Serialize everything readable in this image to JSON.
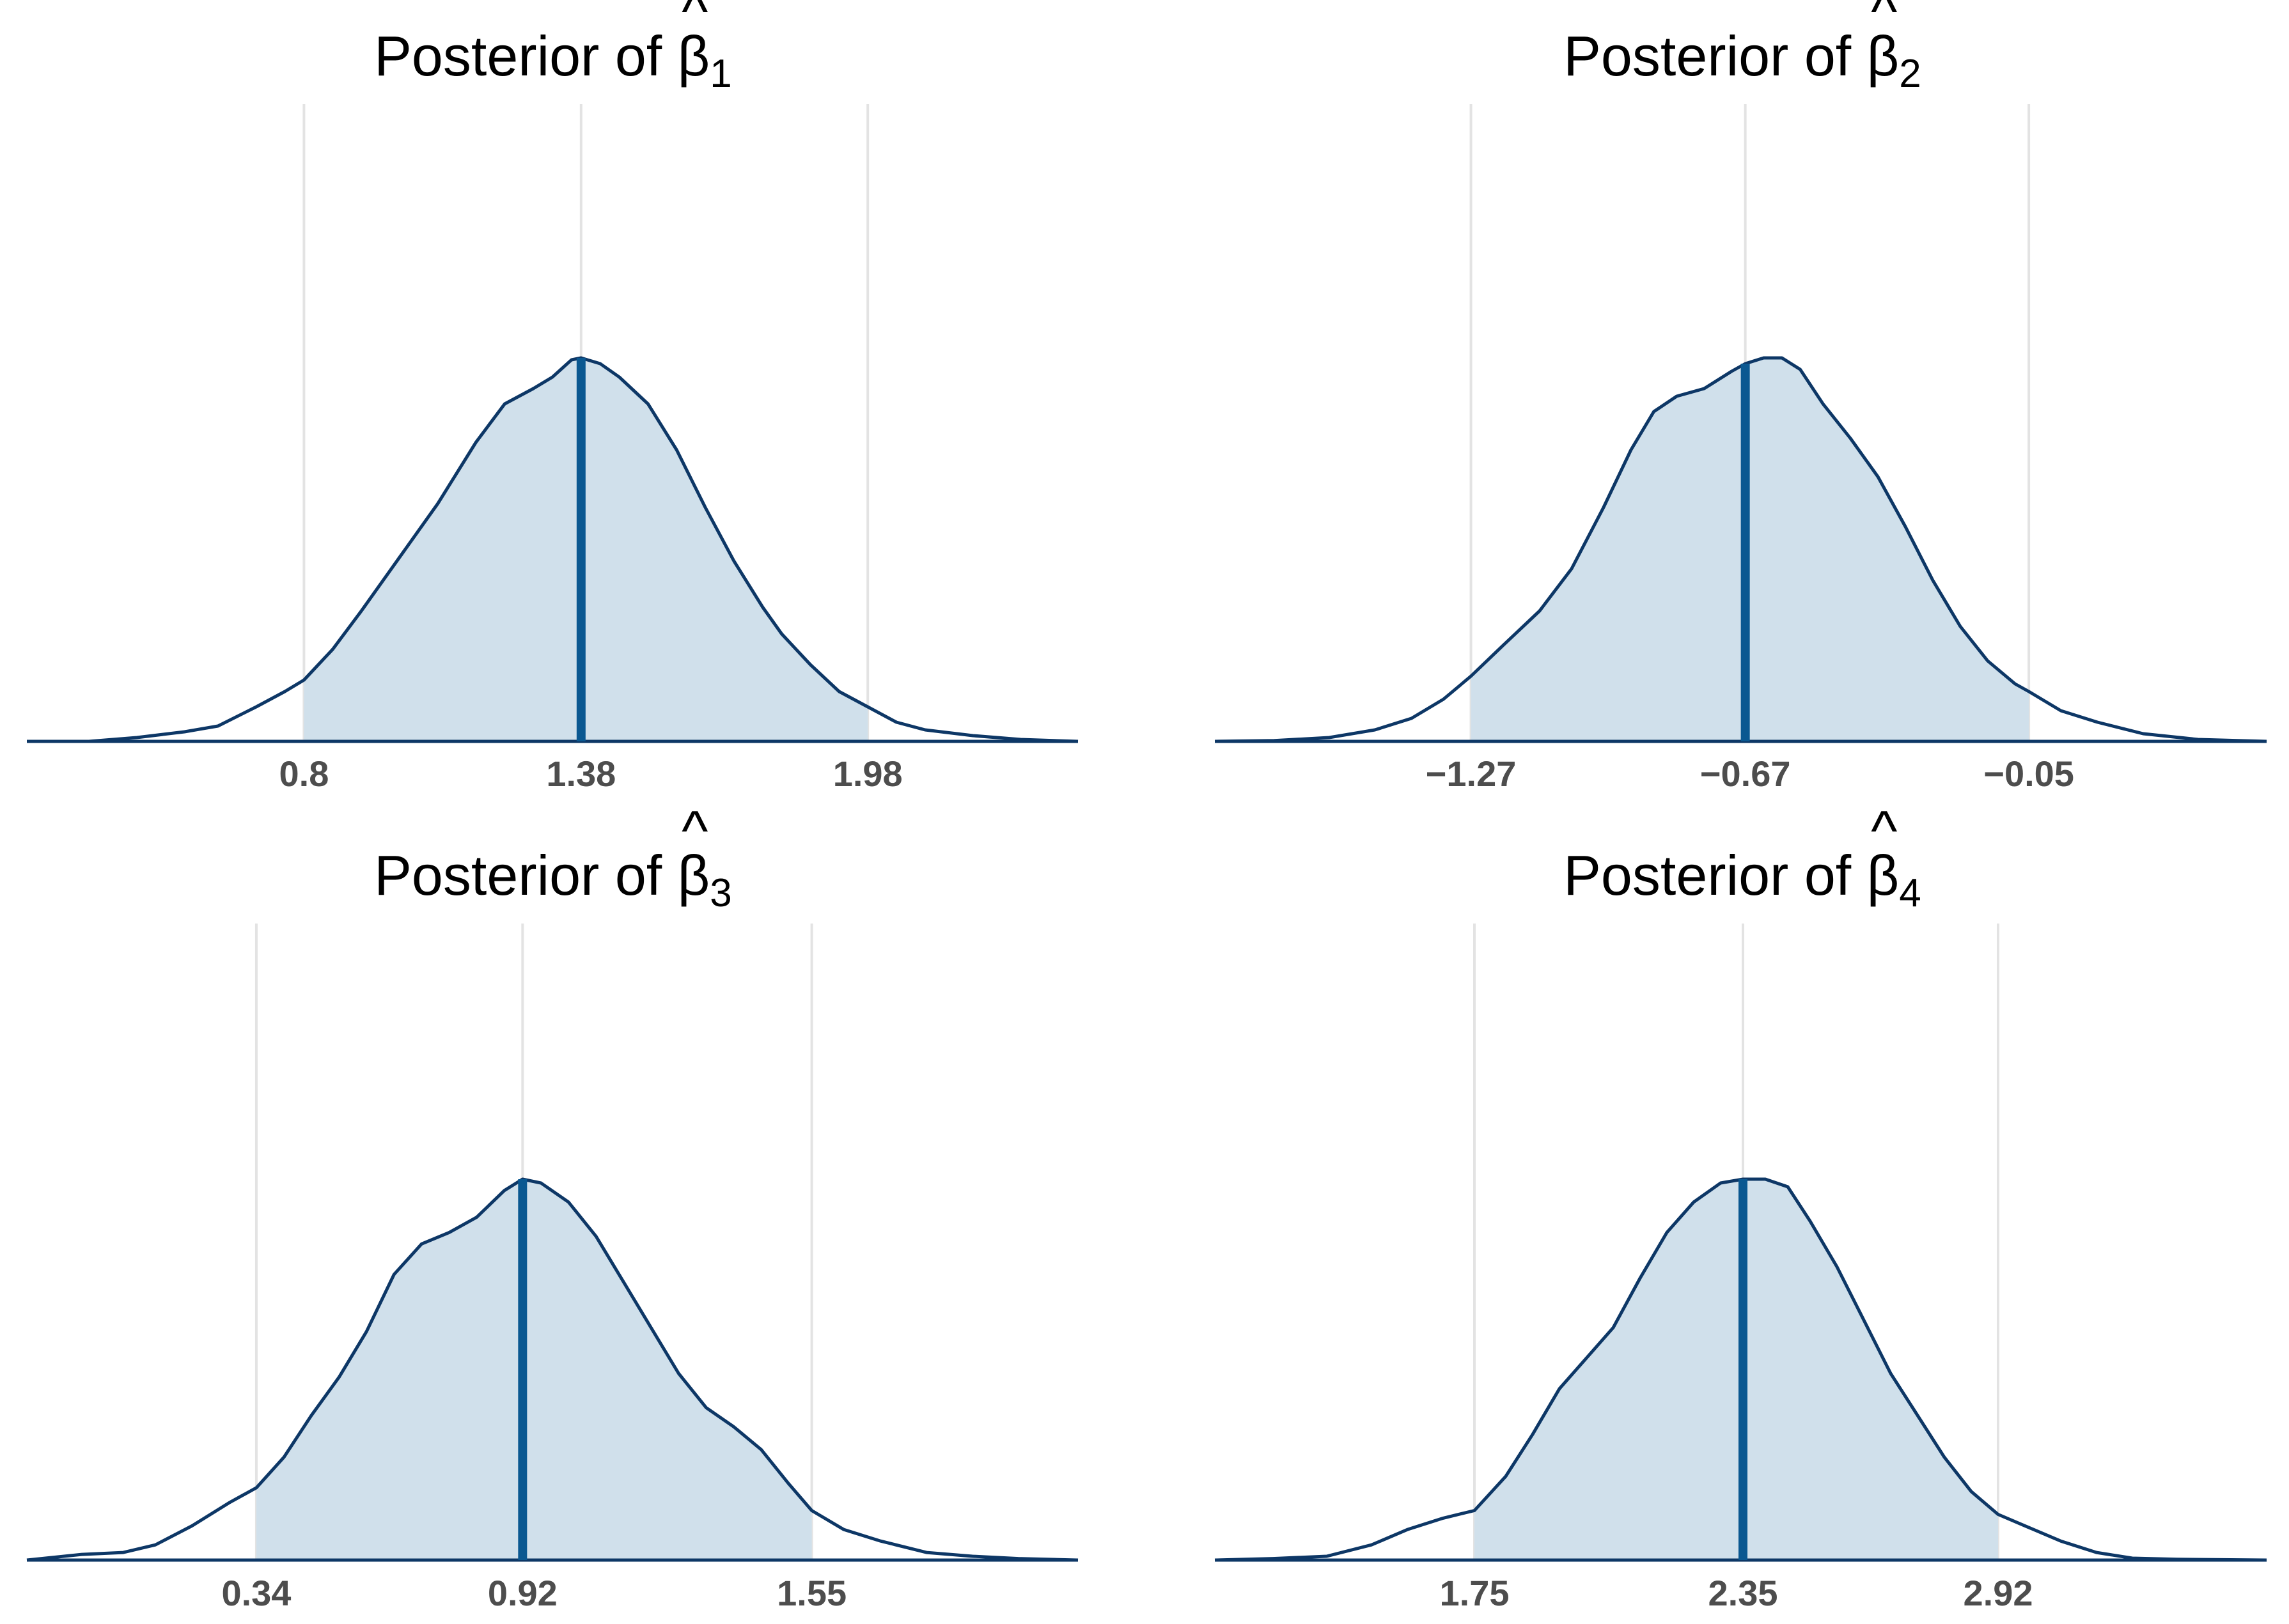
{
  "chart_data": [
    {
      "type": "area",
      "title": "Posterior of β̂1",
      "title_parts": {
        "prefix": "Posterior of ",
        "symbol": "β",
        "hat": "^",
        "subscript": "1"
      },
      "x_range": [
        0.22,
        2.42
      ],
      "ticks": [
        {
          "value": 0.8,
          "label": "0.8"
        },
        {
          "value": 1.38,
          "label": "1.38"
        },
        {
          "value": 1.98,
          "label": "1.98"
        }
      ],
      "interval": [
        0.8,
        1.98
      ],
      "median": 1.38,
      "grid": "vertical at tick values",
      "density": {
        "x": [
          0.22,
          0.35,
          0.45,
          0.55,
          0.62,
          0.7,
          0.76,
          0.8,
          0.86,
          0.92,
          1.0,
          1.08,
          1.16,
          1.22,
          1.28,
          1.32,
          1.36,
          1.38,
          1.42,
          1.46,
          1.52,
          1.58,
          1.64,
          1.7,
          1.76,
          1.8,
          1.86,
          1.92,
          1.98,
          2.04,
          2.1,
          2.2,
          2.3,
          2.42
        ],
        "y": [
          0.0,
          0.0,
          0.01,
          0.025,
          0.04,
          0.09,
          0.13,
          0.16,
          0.24,
          0.34,
          0.48,
          0.62,
          0.78,
          0.88,
          0.92,
          0.95,
          0.995,
          1.0,
          0.985,
          0.95,
          0.88,
          0.76,
          0.61,
          0.47,
          0.35,
          0.28,
          0.2,
          0.13,
          0.09,
          0.05,
          0.03,
          0.015,
          0.005,
          0.0
        ]
      }
    },
    {
      "type": "area",
      "title": "Posterior of β̂2",
      "title_parts": {
        "prefix": "Posterior of ",
        "symbol": "β",
        "hat": "^",
        "subscript": "2"
      },
      "x_range": [
        -1.83,
        0.47
      ],
      "ticks": [
        {
          "value": -1.27,
          "label": "−1.27"
        },
        {
          "value": -0.67,
          "label": "−0.67"
        },
        {
          "value": -0.05,
          "label": "−0.05"
        }
      ],
      "interval": [
        -1.27,
        -0.05
      ],
      "median": -0.67,
      "grid": "vertical at tick values",
      "density": {
        "x": [
          -1.83,
          -1.7,
          -1.58,
          -1.48,
          -1.4,
          -1.33,
          -1.27,
          -1.2,
          -1.12,
          -1.05,
          -0.98,
          -0.92,
          -0.87,
          -0.82,
          -0.76,
          -0.7,
          -0.67,
          -0.63,
          -0.59,
          -0.55,
          -0.5,
          -0.44,
          -0.38,
          -0.32,
          -0.26,
          -0.2,
          -0.14,
          -0.08,
          -0.05,
          0.02,
          0.1,
          0.2,
          0.32,
          0.47
        ],
        "y": [
          0.0,
          0.002,
          0.01,
          0.03,
          0.06,
          0.11,
          0.17,
          0.25,
          0.34,
          0.45,
          0.61,
          0.76,
          0.86,
          0.9,
          0.92,
          0.965,
          0.985,
          1.0,
          1.0,
          0.97,
          0.88,
          0.79,
          0.69,
          0.56,
          0.42,
          0.3,
          0.21,
          0.15,
          0.13,
          0.08,
          0.05,
          0.02,
          0.005,
          0.0
        ]
      }
    },
    {
      "type": "area",
      "title": "Posterior of β̂3",
      "title_parts": {
        "prefix": "Posterior of ",
        "symbol": "β",
        "hat": "^",
        "subscript": "3"
      },
      "x_range": [
        -0.16,
        2.13
      ],
      "ticks": [
        {
          "value": 0.34,
          "label": "0.34"
        },
        {
          "value": 0.92,
          "label": "0.92"
        },
        {
          "value": 1.55,
          "label": "1.55"
        }
      ],
      "interval": [
        0.34,
        1.55
      ],
      "median": 0.92,
      "grid": "vertical at tick values",
      "density": {
        "x": [
          -0.16,
          -0.04,
          0.05,
          0.12,
          0.2,
          0.28,
          0.34,
          0.4,
          0.46,
          0.52,
          0.58,
          0.64,
          0.7,
          0.76,
          0.82,
          0.88,
          0.92,
          0.96,
          1.02,
          1.08,
          1.14,
          1.2,
          1.26,
          1.32,
          1.38,
          1.44,
          1.5,
          1.55,
          1.62,
          1.7,
          1.8,
          1.9,
          2.0,
          2.13
        ],
        "y": [
          0.0,
          0.015,
          0.02,
          0.04,
          0.09,
          0.15,
          0.19,
          0.27,
          0.38,
          0.48,
          0.6,
          0.75,
          0.83,
          0.86,
          0.9,
          0.97,
          1.0,
          0.99,
          0.94,
          0.85,
          0.73,
          0.61,
          0.49,
          0.4,
          0.35,
          0.29,
          0.2,
          0.13,
          0.08,
          0.05,
          0.02,
          0.01,
          0.004,
          0.0
        ]
      }
    },
    {
      "type": "area",
      "title": "Posterior of β̂4",
      "title_parts": {
        "prefix": "Posterior of ",
        "symbol": "β",
        "hat": "^",
        "subscript": "4"
      },
      "x_range": [
        1.17,
        3.52
      ],
      "ticks": [
        {
          "value": 1.75,
          "label": "1.75"
        },
        {
          "value": 2.35,
          "label": "2.35"
        },
        {
          "value": 2.92,
          "label": "2.92"
        }
      ],
      "interval": [
        1.75,
        2.92
      ],
      "median": 2.35,
      "grid": "vertical at tick values",
      "density": {
        "x": [
          1.17,
          1.3,
          1.42,
          1.52,
          1.6,
          1.68,
          1.75,
          1.82,
          1.88,
          1.94,
          2.0,
          2.06,
          2.12,
          2.18,
          2.24,
          2.3,
          2.35,
          2.4,
          2.45,
          2.5,
          2.56,
          2.62,
          2.68,
          2.74,
          2.8,
          2.86,
          2.92,
          2.98,
          3.06,
          3.14,
          3.22,
          3.32,
          3.42,
          3.52
        ],
        "y": [
          0.0,
          0.004,
          0.01,
          0.04,
          0.08,
          0.11,
          0.13,
          0.22,
          0.33,
          0.45,
          0.53,
          0.61,
          0.74,
          0.86,
          0.94,
          0.99,
          1.0,
          1.0,
          0.98,
          0.89,
          0.77,
          0.63,
          0.49,
          0.38,
          0.27,
          0.18,
          0.12,
          0.09,
          0.05,
          0.02,
          0.005,
          0.002,
          0.001,
          0.0
        ]
      }
    }
  ]
}
